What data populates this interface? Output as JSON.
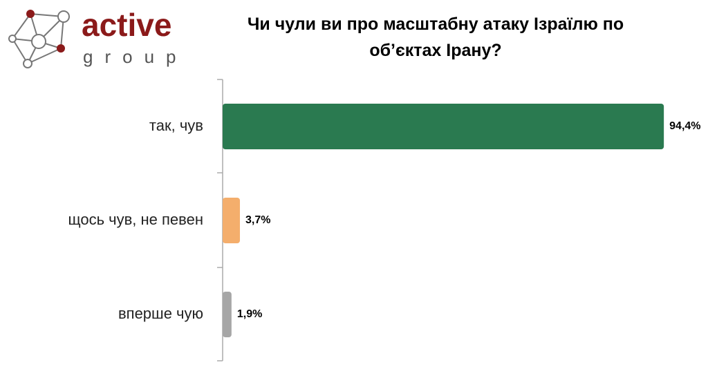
{
  "logo": {
    "name": "active",
    "tagline": "group"
  },
  "chart_data": {
    "type": "bar",
    "orientation": "horizontal",
    "title": "Чи чули ви про масштабну атаку Ізраїлю по об’єктах Ірану?",
    "categories": [
      "так, чув",
      "щось чув, не певен",
      "вперше чую"
    ],
    "values": [
      94.4,
      3.7,
      1.9
    ],
    "value_labels": [
      "94,4%",
      "3,7%",
      "1,9%"
    ],
    "colors": [
      "#2a7a50",
      "#f4ae6c",
      "#a6a6a6"
    ]
  }
}
